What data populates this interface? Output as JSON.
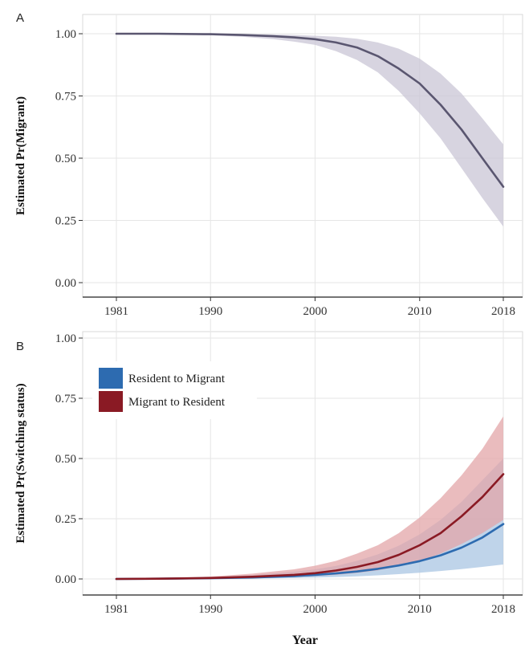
{
  "chart_data": [
    {
      "panel": "A",
      "type": "line",
      "ylabel": "Estimated Pr(Migrant)",
      "xlabel": "",
      "xlim": [
        1981,
        2018
      ],
      "ylim": [
        0,
        1
      ],
      "x_ticks": [
        "1981",
        "1990",
        "2000",
        "2010",
        "2018"
      ],
      "y_ticks": [
        "0.00",
        "0.25",
        "0.50",
        "0.75",
        "1.00"
      ],
      "grid": true,
      "series": [
        {
          "color": "#5a5670",
          "band_color": "#c9c5d6",
          "x": [
            1981,
            1985,
            1990,
            1993,
            1996,
            1998,
            2000,
            2002,
            2004,
            2006,
            2008,
            2010,
            2012,
            2014,
            2016,
            2018
          ],
          "y": [
            1.0,
            1.0,
            0.998,
            0.995,
            0.99,
            0.985,
            0.978,
            0.965,
            0.945,
            0.91,
            0.86,
            0.8,
            0.715,
            0.615,
            0.5,
            0.385
          ],
          "lower": [
            1.0,
            0.999,
            0.994,
            0.988,
            0.978,
            0.968,
            0.955,
            0.93,
            0.895,
            0.845,
            0.77,
            0.68,
            0.58,
            0.46,
            0.34,
            0.225
          ],
          "upper": [
            1.0,
            1.0,
            1.0,
            0.999,
            0.997,
            0.995,
            0.992,
            0.988,
            0.98,
            0.965,
            0.94,
            0.9,
            0.84,
            0.76,
            0.66,
            0.555
          ]
        }
      ]
    },
    {
      "panel": "B",
      "type": "line",
      "ylabel": "Estimated Pr(Switching status)",
      "xlabel": "Year",
      "xlim": [
        1981,
        2018
      ],
      "ylim": [
        0,
        1
      ],
      "x_ticks": [
        "1981",
        "1990",
        "2000",
        "2010",
        "2018"
      ],
      "y_ticks": [
        "0.00",
        "0.25",
        "0.50",
        "0.75",
        "1.00"
      ],
      "grid": true,
      "legend_position": "top-left",
      "series": [
        {
          "name": "Resident to Migrant",
          "color": "#2d6bb0",
          "band_color": "#a9c6e3",
          "x": [
            1981,
            1985,
            1990,
            1994,
            1998,
            2000,
            2002,
            2004,
            2006,
            2008,
            2010,
            2012,
            2014,
            2016,
            2018
          ],
          "y": [
            0.0,
            0.001,
            0.003,
            0.006,
            0.012,
            0.017,
            0.023,
            0.031,
            0.042,
            0.056,
            0.074,
            0.098,
            0.13,
            0.172,
            0.228
          ],
          "lower": [
            0.0,
            0.0,
            0.001,
            0.002,
            0.004,
            0.006,
            0.008,
            0.011,
            0.015,
            0.02,
            0.026,
            0.033,
            0.041,
            0.05,
            0.06
          ],
          "upper": [
            0.0,
            0.003,
            0.008,
            0.016,
            0.03,
            0.04,
            0.054,
            0.075,
            0.102,
            0.138,
            0.185,
            0.245,
            0.32,
            0.41,
            0.5
          ]
        },
        {
          "name": "Migrant to Resident",
          "color": "#8a1a24",
          "band_color": "#e3a6a8",
          "x": [
            1981,
            1985,
            1990,
            1994,
            1998,
            2000,
            2002,
            2004,
            2006,
            2008,
            2010,
            2012,
            2014,
            2016,
            2018
          ],
          "y": [
            0.0,
            0.001,
            0.004,
            0.009,
            0.017,
            0.024,
            0.035,
            0.05,
            0.07,
            0.1,
            0.14,
            0.19,
            0.26,
            0.34,
            0.435
          ],
          "lower": [
            0.0,
            0.0,
            0.002,
            0.004,
            0.008,
            0.012,
            0.017,
            0.025,
            0.036,
            0.052,
            0.075,
            0.105,
            0.145,
            0.19,
            0.245
          ],
          "upper": [
            0.0,
            0.003,
            0.01,
            0.022,
            0.04,
            0.055,
            0.075,
            0.105,
            0.14,
            0.19,
            0.255,
            0.335,
            0.43,
            0.54,
            0.675
          ]
        }
      ]
    }
  ]
}
